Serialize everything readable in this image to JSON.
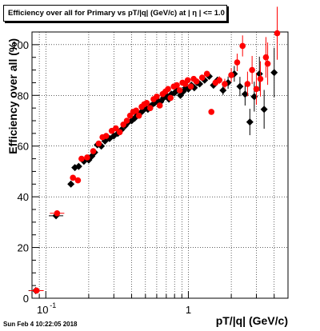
{
  "date_stamp": "Sun Feb  4 10:22:05 2018",
  "chart_data": {
    "type": "scatter",
    "title": "Efficiency over all for Primary vs pT/|q| (GeV/c) at | η | <= 1.0",
    "xlabel": "pT/|q| (GeV/c)",
    "ylabel": "Efficiency over all (%)",
    "x_scale": "log",
    "xlim": [
      0.08,
      5.0
    ],
    "ylim": [
      0,
      105
    ],
    "grid": true,
    "x_tick_labels": [
      {
        "value": 0.1,
        "label": "10",
        "exp": "-1"
      },
      {
        "value": 1,
        "label": "1",
        "exp": ""
      }
    ],
    "y_ticks": [
      0,
      20,
      40,
      60,
      80,
      100
    ],
    "series": [
      {
        "color": "#000000",
        "marker": "diamond",
        "points": [
          [
            0.085,
            3.0
          ],
          [
            0.118,
            32.5
          ],
          [
            0.15,
            45.0
          ],
          [
            0.16,
            51.5
          ],
          [
            0.17,
            52.0
          ],
          [
            0.185,
            54.0
          ],
          [
            0.2,
            54.5
          ],
          [
            0.21,
            56.0
          ],
          [
            0.22,
            57.5
          ],
          [
            0.23,
            60.5
          ],
          [
            0.245,
            60.0
          ],
          [
            0.26,
            62.0
          ],
          [
            0.28,
            63.0
          ],
          [
            0.3,
            64.0
          ],
          [
            0.32,
            65.0
          ],
          [
            0.34,
            66.5
          ],
          [
            0.36,
            68.0
          ],
          [
            0.38,
            69.5
          ],
          [
            0.4,
            70.0
          ],
          [
            0.42,
            71.0
          ],
          [
            0.44,
            72.5
          ],
          [
            0.46,
            73.0
          ],
          [
            0.48,
            74.0
          ],
          [
            0.5,
            75.0
          ],
          [
            0.52,
            74.5
          ],
          [
            0.55,
            76.0
          ],
          [
            0.58,
            77.0
          ],
          [
            0.61,
            78.0
          ],
          [
            0.64,
            77.5
          ],
          [
            0.67,
            79.0
          ],
          [
            0.7,
            80.0
          ],
          [
            0.73,
            78.5
          ],
          [
            0.76,
            80.5
          ],
          [
            0.8,
            81.0
          ],
          [
            0.84,
            82.0
          ],
          [
            0.88,
            80.0
          ],
          [
            0.92,
            81.5
          ],
          [
            0.96,
            83.0
          ],
          [
            1.0,
            82.5
          ],
          [
            1.05,
            84.0
          ],
          [
            1.1,
            83.0
          ],
          [
            1.15,
            85.0
          ],
          [
            1.2,
            84.5
          ],
          [
            1.3,
            86.0
          ],
          [
            1.4,
            87.5
          ],
          [
            1.5,
            84.0
          ],
          [
            1.6,
            86.0
          ],
          [
            1.75,
            82.0
          ],
          [
            1.9,
            85.0
          ],
          [
            2.1,
            88.5
          ],
          [
            2.3,
            83.5
          ],
          [
            2.5,
            80.5
          ],
          [
            2.7,
            69.5
          ],
          [
            2.9,
            79.5
          ],
          [
            3.15,
            88.5
          ],
          [
            3.4,
            74.5
          ],
          [
            4.0,
            89.0
          ]
        ]
      },
      {
        "color": "#ff0000",
        "marker": "circle",
        "points": [
          [
            0.086,
            3.0
          ],
          [
            0.12,
            33.5
          ],
          [
            0.155,
            47.5
          ],
          [
            0.168,
            46.5
          ],
          [
            0.178,
            55.0
          ],
          [
            0.195,
            55.5
          ],
          [
            0.215,
            58.0
          ],
          [
            0.235,
            61.0
          ],
          [
            0.25,
            63.5
          ],
          [
            0.265,
            64.0
          ],
          [
            0.29,
            66.0
          ],
          [
            0.31,
            67.0
          ],
          [
            0.33,
            65.5
          ],
          [
            0.35,
            68.5
          ],
          [
            0.37,
            70.0
          ],
          [
            0.39,
            72.0
          ],
          [
            0.41,
            73.5
          ],
          [
            0.43,
            74.0
          ],
          [
            0.45,
            72.0
          ],
          [
            0.47,
            75.5
          ],
          [
            0.49,
            76.5
          ],
          [
            0.51,
            77.0
          ],
          [
            0.54,
            75.0
          ],
          [
            0.57,
            78.5
          ],
          [
            0.6,
            79.5
          ],
          [
            0.63,
            76.0
          ],
          [
            0.66,
            80.5
          ],
          [
            0.69,
            81.5
          ],
          [
            0.72,
            82.5
          ],
          [
            0.75,
            79.0
          ],
          [
            0.79,
            83.5
          ],
          [
            0.83,
            84.0
          ],
          [
            0.87,
            82.0
          ],
          [
            0.91,
            85.0
          ],
          [
            0.95,
            84.5
          ],
          [
            0.99,
            86.0
          ],
          [
            1.04,
            83.5
          ],
          [
            1.09,
            86.5
          ],
          [
            1.14,
            85.5
          ],
          [
            1.25,
            87.0
          ],
          [
            1.35,
            88.5
          ],
          [
            1.45,
            73.5
          ],
          [
            1.55,
            85.0
          ],
          [
            1.65,
            86.0
          ],
          [
            1.8,
            84.5
          ],
          [
            2.0,
            88.0
          ],
          [
            2.2,
            93.0
          ],
          [
            2.4,
            99.5
          ],
          [
            2.6,
            84.5
          ],
          [
            2.8,
            90.0
          ],
          [
            3.0,
            82.5
          ],
          [
            3.2,
            86.5
          ],
          [
            3.5,
            95.0
          ],
          [
            3.6,
            92.5
          ],
          [
            4.2,
            104.5
          ]
        ]
      }
    ]
  }
}
